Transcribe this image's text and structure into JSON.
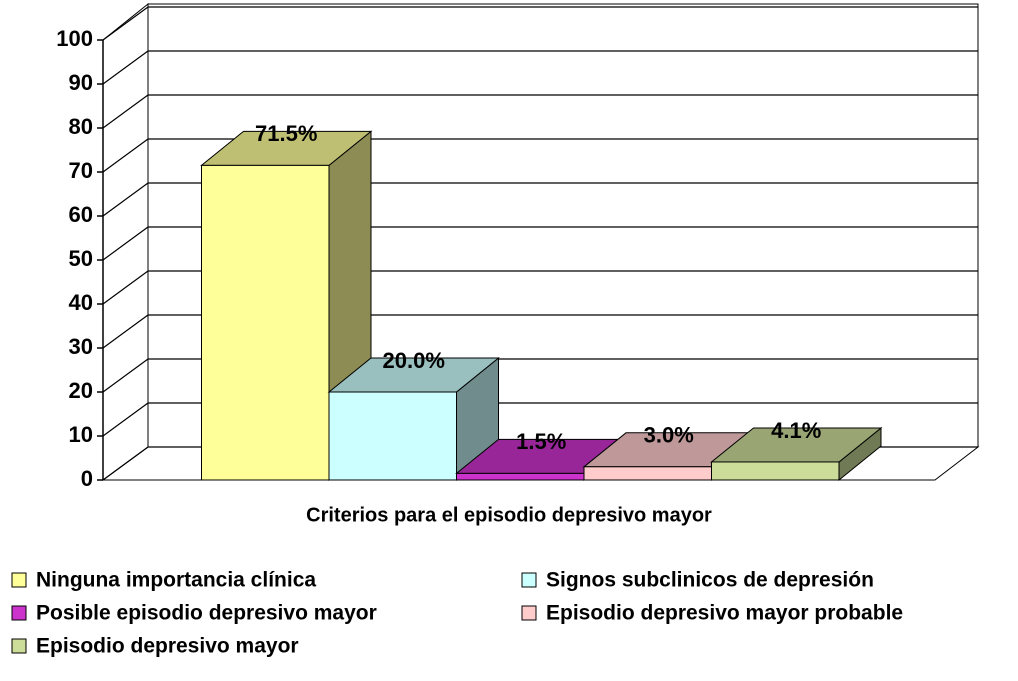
{
  "chart_data": {
    "type": "bar",
    "xlabel": "Criterios para el episodio depresivo mayor",
    "ylim": [
      0,
      100
    ],
    "yticks": [
      0,
      10,
      20,
      30,
      40,
      50,
      60,
      70,
      80,
      90,
      100
    ],
    "grid": true,
    "series": [
      {
        "name": "Ninguna importancia clínica",
        "color": "#ffff99",
        "values": [
          71.5
        ],
        "value_labels": [
          "71.5%"
        ]
      },
      {
        "name": "Signos subclinicos de depresión",
        "color": "#ccffff",
        "values": [
          20.0
        ],
        "value_labels": [
          "20.0%"
        ]
      },
      {
        "name": "Posible episodio depresivo mayor",
        "color": "#cc33cc",
        "values": [
          1.5
        ],
        "value_labels": [
          "1.5%"
        ]
      },
      {
        "name": "Episodio depresivo mayor probable",
        "color": "#ffcccc",
        "values": [
          3.0
        ],
        "value_labels": [
          "3.0%"
        ]
      },
      {
        "name": "Episodio depresivo mayor",
        "color": "#ccdd99",
        "values": [
          4.1
        ],
        "value_labels": [
          "4.1%"
        ]
      }
    ]
  }
}
